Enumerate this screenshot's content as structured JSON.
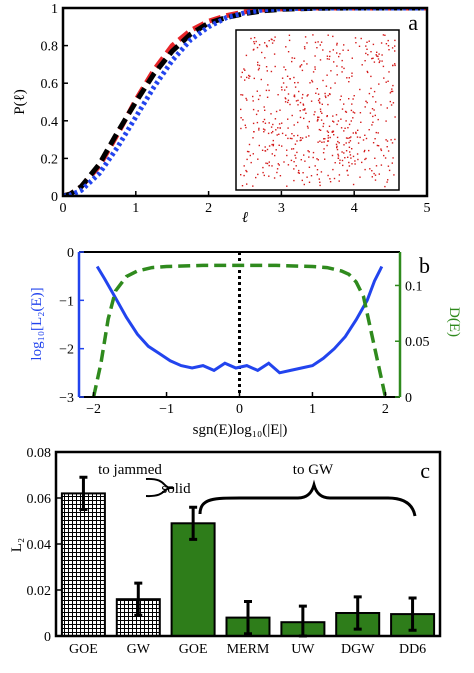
{
  "colors": {
    "red": "#e8262a",
    "black": "#000000",
    "blue": "#2244ee",
    "green": "#2f8a1d",
    "green_bar": "#2e7d1a",
    "scatter": "#d41a1a"
  },
  "panels": {
    "a": "a",
    "b": "b",
    "c": "c"
  },
  "chart_data": [
    {
      "type": "line",
      "panel": "a",
      "xlabel": "ℓ",
      "ylabel": "P(ℓ)",
      "xlim": [
        0,
        5
      ],
      "ylim": [
        0,
        1
      ],
      "xticks": [
        "0",
        "1",
        "2",
        "3",
        "4",
        "5"
      ],
      "yticks": [
        "0",
        "0.2",
        "0.4",
        "0.6",
        "0.8",
        "1"
      ],
      "series": [
        {
          "color": "#e8262a",
          "style": "dashed",
          "x": [
            0,
            0.1,
            0.25,
            0.5,
            0.75,
            1,
            1.25,
            1.5,
            1.75,
            2,
            2.25,
            2.5,
            2.75,
            3,
            3.5,
            4,
            4.5,
            5
          ],
          "y": [
            0,
            0.01,
            0.05,
            0.16,
            0.33,
            0.51,
            0.67,
            0.8,
            0.88,
            0.93,
            0.96,
            0.98,
            0.99,
            0.995,
            1,
            1,
            1,
            1
          ]
        },
        {
          "color": "#000000",
          "style": "dashed",
          "x": [
            0,
            0.1,
            0.25,
            0.5,
            0.75,
            1,
            1.25,
            1.5,
            1.75,
            2,
            2.25,
            2.5,
            2.75,
            3,
            3.5,
            4,
            4.5,
            5
          ],
          "y": [
            0,
            0.01,
            0.05,
            0.17,
            0.34,
            0.5,
            0.65,
            0.77,
            0.86,
            0.92,
            0.95,
            0.97,
            0.985,
            0.993,
            0.999,
            1,
            1,
            1
          ]
        },
        {
          "color": "#2244ee",
          "style": "dotted",
          "x": [
            0,
            0.1,
            0.25,
            0.5,
            0.75,
            1,
            1.25,
            1.5,
            1.75,
            2,
            2.25,
            2.5,
            2.75,
            3,
            3.5,
            4,
            4.5,
            5
          ],
          "y": [
            0,
            0.005,
            0.03,
            0.12,
            0.26,
            0.42,
            0.58,
            0.72,
            0.83,
            0.9,
            0.95,
            0.975,
            0.99,
            0.996,
            1,
            1,
            1,
            1
          ]
        }
      ],
      "inset": "scatter"
    },
    {
      "type": "line",
      "panel": "b",
      "xlabel": "sgn(E)log₁₀(|E|)",
      "ylabel": "log₁₀[L₂(E)]",
      "ylabel_right": "D(E)",
      "xlim": [
        -2.2,
        2.2
      ],
      "ylim": [
        -3,
        0
      ],
      "ylim_right": [
        0,
        0.13
      ],
      "xticks": [
        "−2",
        "−1",
        "0",
        "1",
        "2"
      ],
      "yticks": [
        "0",
        "−1",
        "−2",
        "−3"
      ],
      "yticks_right": [
        "0",
        "0.05",
        "0.1"
      ],
      "series": [
        {
          "axis": "left",
          "color": "#2244ee",
          "style": "solid",
          "x": [
            -1.95,
            -1.85,
            -1.7,
            -1.55,
            -1.4,
            -1.25,
            -1.1,
            -0.95,
            -0.8,
            -0.65,
            -0.5,
            -0.35,
            -0.2,
            -0.05,
            0.1,
            0.25,
            0.4,
            0.55,
            0.7,
            0.85,
            1,
            1.15,
            1.3,
            1.45,
            1.6,
            1.75,
            1.85,
            1.95
          ],
          "y": [
            -0.3,
            -0.55,
            -0.95,
            -1.35,
            -1.7,
            -1.95,
            -2.1,
            -2.25,
            -2.35,
            -2.4,
            -2.35,
            -2.45,
            -2.3,
            -2.4,
            -2.35,
            -2.45,
            -2.3,
            -2.5,
            -2.45,
            -2.4,
            -2.35,
            -2.2,
            -2.0,
            -1.75,
            -1.4,
            -1.0,
            -0.6,
            -0.3
          ]
        },
        {
          "axis": "right",
          "color": "#2f8a1d",
          "style": "dashed",
          "x": [
            -2.0,
            -1.9,
            -1.8,
            -1.7,
            -1.55,
            -1.4,
            -1.2,
            -1.0,
            -0.5,
            0,
            0.5,
            1.0,
            1.2,
            1.4,
            1.5,
            1.6,
            1.7,
            1.8,
            1.9,
            2.0
          ],
          "y": [
            0,
            0.03,
            0.07,
            0.095,
            0.108,
            0.113,
            0.116,
            0.117,
            0.118,
            0.118,
            0.118,
            0.117,
            0.116,
            0.113,
            0.11,
            0.103,
            0.09,
            0.06,
            0.03,
            0
          ]
        }
      ],
      "vline_x": 0
    },
    {
      "type": "bar",
      "panel": "c",
      "ylabel": "L₂",
      "ylim": [
        0,
        0.08
      ],
      "yticks": [
        "0",
        "0.02",
        "0.04",
        "0.06",
        "0.08"
      ],
      "categories": [
        "GOE",
        "GW",
        "GOE",
        "MERM",
        "UW",
        "DGW",
        "DD6"
      ],
      "values": [
        0.062,
        0.016,
        0.049,
        0.008,
        0.006,
        0.01,
        0.0095
      ],
      "errors": [
        0.007,
        0.007,
        0.007,
        0.007,
        0.007,
        0.007,
        0.007
      ],
      "fills": [
        "hatched",
        "hatched",
        "green",
        "green",
        "green",
        "green",
        "green"
      ],
      "annotations": {
        "left_top": "to jammed",
        "left_bottom": "solid",
        "right": "to GW"
      }
    }
  ]
}
